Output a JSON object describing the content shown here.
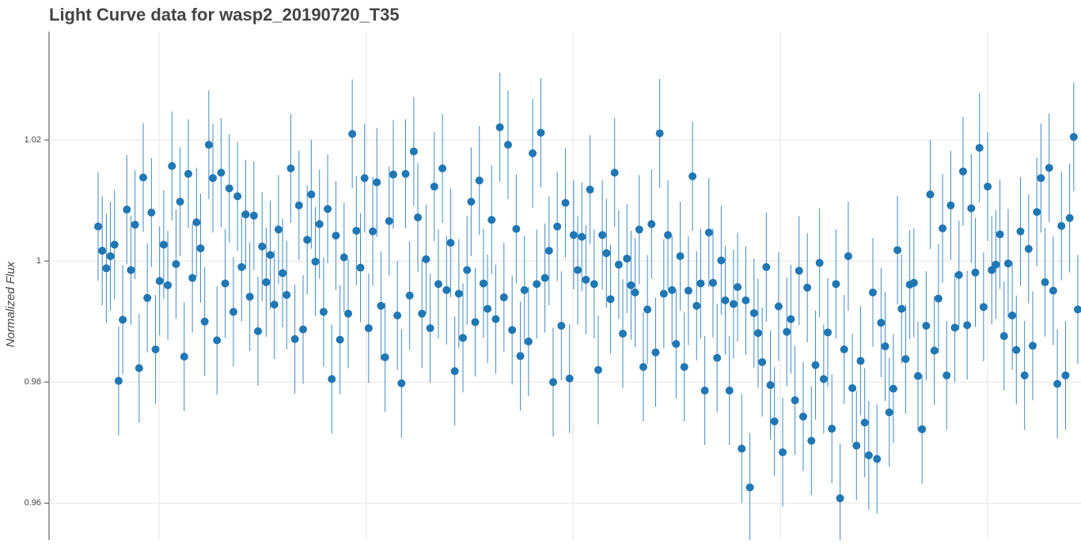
{
  "chart_data": {
    "type": "errorbar-scatter",
    "title": "Light Curve data for wasp2_20190720_T35",
    "ylabel": "Normalized Flux",
    "color": "#1f77b4",
    "error": 0.009,
    "ylim": [
      0.9539,
      1.0379
    ],
    "yticks": [
      0.96,
      0.98,
      1,
      1.02
    ],
    "grid": true,
    "values": [
      1.0057,
      1.0017,
      0.9988,
      1.0008,
      1.0027,
      0.9802,
      0.9903,
      1.0085,
      0.9985,
      1.006,
      0.9823,
      1.0138,
      0.9939,
      1.008,
      0.9854,
      0.9967,
      1.0027,
      0.996,
      1.0157,
      0.9995,
      1.0098,
      0.9842,
      1.0144,
      0.9972,
      1.0064,
      1.0021,
      0.99,
      1.0192,
      1.0137,
      0.9869,
      1.0146,
      0.9963,
      1.012,
      0.9916,
      1.0107,
      0.999,
      1.0077,
      0.9941,
      1.0075,
      0.9884,
      1.0024,
      0.9965,
      1.001,
      0.9928,
      1.0052,
      0.998,
      0.9944,
      1.0153,
      0.9871,
      1.0092,
      0.9887,
      1.0035,
      1.011,
      0.9999,
      1.0061,
      0.9916,
      1.0086,
      0.9805,
      1.0042,
      0.987,
      1.0006,
      0.9913,
      1.021,
      1.005,
      0.9989,
      1.0137,
      0.9889,
      1.0049,
      1.013,
      0.9926,
      0.9841,
      1.0066,
      1.0143,
      0.991,
      0.9798,
      1.0144,
      0.9943,
      1.0181,
      1.0072,
      0.9913,
      1.0003,
      0.9889,
      1.0123,
      0.9962,
      1.0153,
      0.9952,
      1.003,
      0.9818,
      0.9946,
      0.9873,
      0.9985,
      1.0098,
      0.9899,
      1.0133,
      0.9963,
      0.9921,
      1.0068,
      0.9904,
      1.0221,
      0.994,
      1.0192,
      0.9886,
      1.0053,
      0.9843,
      0.9952,
      0.9867,
      1.0178,
      0.9962,
      1.0212,
      0.9972,
      1.0017,
      0.98,
      1.0057,
      0.9893,
      1.0096,
      0.9806,
      1.0043,
      0.9985,
      1.004,
      0.9969,
      1.0118,
      0.9962,
      0.982,
      1.0043,
      1.0013,
      0.9937,
      1.0146,
      0.9994,
      0.988,
      1.0004,
      0.996,
      0.9948,
      1.0052,
      0.9825,
      0.992,
      1.0061,
      0.9849,
      1.0211,
      0.9946,
      1.0043,
      0.9952,
      0.9863,
      1.0008,
      0.9825,
      0.9951,
      1.014,
      0.9926,
      0.9963,
      0.9786,
      1.0047,
      0.9964,
      0.984,
      1.0001,
      0.9935,
      0.9786,
      0.9929,
      0.9957,
      0.969,
      0.9935,
      0.9626,
      0.9914,
      0.9881,
      0.9833,
      0.999,
      0.9795,
      0.9735,
      0.9925,
      0.9684,
      0.9883,
      0.9904,
      0.977,
      0.9984,
      0.9743,
      0.9956,
      0.9703,
      0.9828,
      0.9997,
      0.9805,
      0.9882,
      0.9723,
      0.9962,
      0.9608,
      0.9854,
      1.0008,
      0.979,
      0.9695,
      0.9835,
      0.9733,
      0.9679,
      0.9948,
      0.9673,
      0.9898,
      0.9859,
      0.975,
      0.9789,
      1.0018,
      0.9921,
      0.9838,
      0.9961,
      0.9964,
      0.981,
      0.9722,
      0.9893,
      1.011,
      0.9852,
      0.9938,
      1.0054,
      0.9811,
      1.0092,
      0.989,
      0.9977,
      1.0148,
      0.9894,
      1.0087,
      0.9981,
      1.0187,
      0.9924,
      1.0123,
      0.9985,
      0.9994,
      1.0044,
      0.9876,
      0.9996,
      0.991,
      0.9853,
      1.0049,
      0.9811,
      1.002,
      0.986,
      1.0081,
      1.0137,
      0.9965,
      1.0154,
      0.9951,
      0.9797,
      1.0058,
      0.9811,
      1.0071,
      1.0205,
      0.992
    ]
  }
}
